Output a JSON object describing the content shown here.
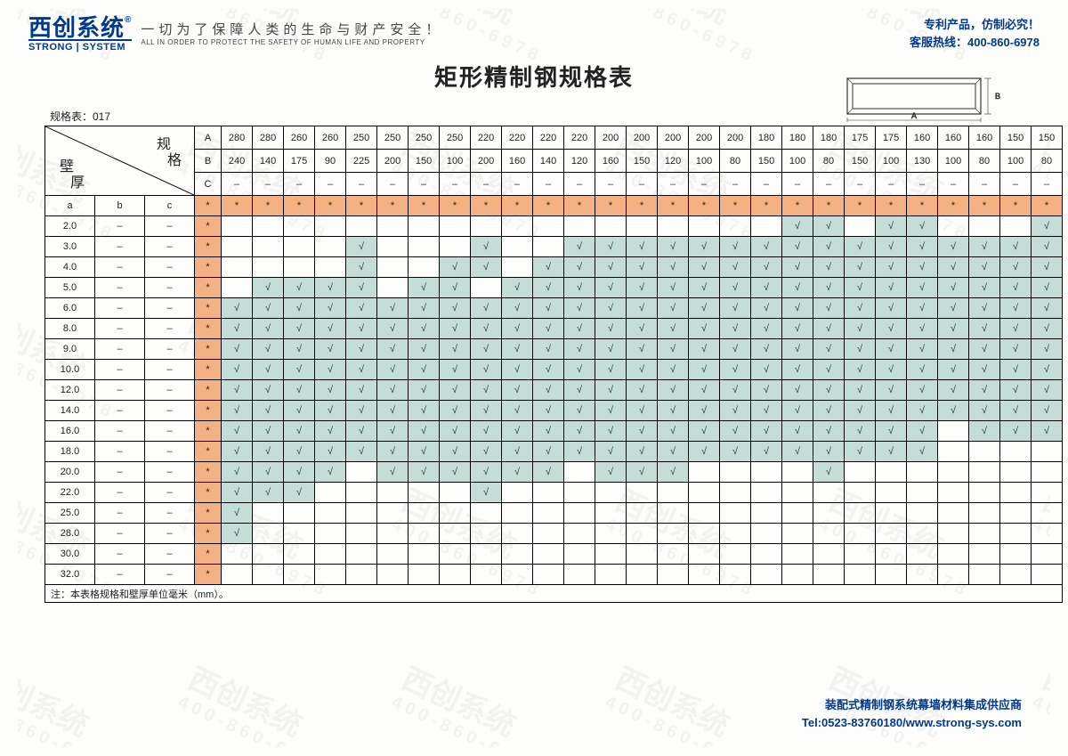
{
  "brand": {
    "cn": "西创系统",
    "reg": "®",
    "en": "STRONG | SYSTEM",
    "slogan_cn": "一切为了保障人类的生命与财产安全！",
    "slogan_en": "ALL IN ORDER TO PROTECT THE SAFETY OF HUMAN LIFE AND PROPERTY"
  },
  "top_right": {
    "l1": "专利产品，仿制必究！",
    "l2": "客服热线：400-860-6978"
  },
  "title": "矩形精制钢规格表",
  "table_id": "规格表：017",
  "diag": {
    "spec": "规",
    "spec2": "格",
    "thick": "壁",
    "thick2": "厚"
  },
  "row_labels": [
    "A",
    "B",
    "C"
  ],
  "col_a_vals": [
    "280",
    "280",
    "260",
    "260",
    "250",
    "250",
    "250",
    "250",
    "220",
    "220",
    "220",
    "220",
    "200",
    "200",
    "200",
    "200",
    "200",
    "180",
    "180",
    "180",
    "175",
    "175",
    "160",
    "160",
    "160",
    "150",
    "150"
  ],
  "col_b_vals": [
    "240",
    "140",
    "175",
    "90",
    "225",
    "200",
    "150",
    "100",
    "200",
    "160",
    "140",
    "120",
    "160",
    "150",
    "120",
    "100",
    "80",
    "150",
    "100",
    "80",
    "150",
    "100",
    "130",
    "100",
    "80",
    "100",
    "80"
  ],
  "abc": [
    "a",
    "b",
    "c"
  ],
  "thicknesses": [
    "2.0",
    "3.0",
    "4.0",
    "5.0",
    "6.0",
    "8.0",
    "9.0",
    "10.0",
    "12.0",
    "14.0",
    "16.0",
    "18.0",
    "20.0",
    "22.0",
    "25.0",
    "28.0",
    "30.0",
    "32.0"
  ],
  "grid": [
    "..................cc.cc...ccccc",
    "....c...c..ccccccccccccccccccccc",
    "....c..cc.ccccccccccccccccccccc",
    ".cccc.cc.cccccccccccccccccccccc",
    "cccccccccccccccccccccccccccccccc",
    "cccccccccccccccccccccccccccccccc",
    "cccccccccccccccccccccccccccccccc",
    "cccccccccccccccccccccccccccccccc",
    "cccccccccccccccccccccccccccccccc",
    "cccccccccccccccccccccccccccc.cc",
    "ccccccccccccccccccccccc.ccc.cc",
    "ccccccccccccccccccccccc....cc",
    "cccc.cccccc.ccc....c",
    "ccc.....c",
    "c",
    "c",
    "",
    ""
  ],
  "note": "注：本表格规格和壁厚单位毫米（mm）。",
  "footer": {
    "l1": "装配式精制钢系统幕墙材料集成供应商",
    "l2": "Tel:0523-83760180/www.strong-sys.com"
  },
  "watermark": {
    "cn": "西创系统",
    "ph": "400-860-6978"
  },
  "diagram_labels": {
    "a": "A",
    "b": "B"
  },
  "colors": {
    "star_bg": "#f4b183",
    "check_bg": "#c5ddd7",
    "brand": "#003a8c",
    "border": "#000000"
  }
}
